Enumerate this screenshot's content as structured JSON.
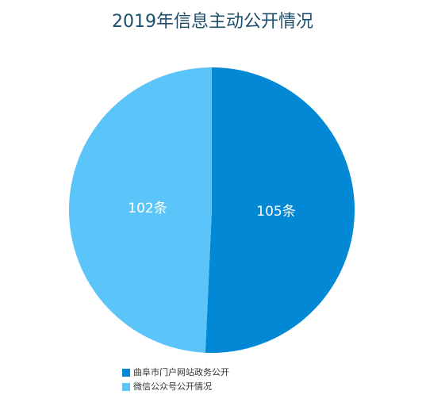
{
  "chart_data": {
    "type": "pie",
    "title": "2019年信息主动公开情况",
    "categories": [
      "曲阜市门户网站政务公开",
      "微信公众号公开情况"
    ],
    "values": [
      105,
      102
    ],
    "value_labels": [
      "105条",
      "102条"
    ],
    "colors": [
      "#0288d4",
      "#5bc4f9"
    ]
  }
}
